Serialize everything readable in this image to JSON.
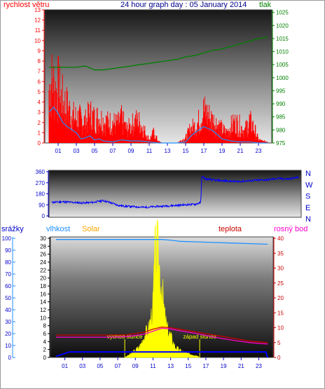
{
  "colors": {
    "wind": "#ff0000",
    "gust": "#1e90ff",
    "pressure": "#008000",
    "direction": "#0000ff",
    "humidity": "#1e90ff",
    "solar": "#ffff00",
    "temperature": "#cc0000",
    "dewpoint": "#ff00cc",
    "rain": "#0000ff",
    "title": "#00008b",
    "axis_blue": "#0000cd",
    "solar_label": "#ffa500"
  },
  "chart_data": [
    {
      "type": "line",
      "title": "24 hour graph day : 05 January 2014",
      "left_label": "rychlost větru",
      "right_label": "tlak",
      "x_ticks": [
        "01",
        "03",
        "05",
        "07",
        "09",
        "11",
        "13",
        "15",
        "17",
        "19",
        "21",
        "23"
      ],
      "y_left_ticks": [
        "0",
        "1",
        "2",
        "3",
        "4",
        "5",
        "6",
        "7",
        "8",
        "9",
        "10",
        "11",
        "12",
        "13"
      ],
      "y_left_range": [
        0,
        13
      ],
      "y_right_ticks": [
        "975",
        "980",
        "985",
        "990",
        "995",
        "1000",
        "1005",
        "1010",
        "1015",
        "1020",
        "1025"
      ],
      "y_right_range": [
        975,
        1026
      ],
      "x_range": [
        0,
        24
      ],
      "series": [
        {
          "key": "wind",
          "hours": [
            0,
            0.25,
            0.5,
            0.75,
            1,
            1.25,
            1.5,
            1.75,
            2,
            2.25,
            2.5,
            2.75,
            3,
            3.5,
            4,
            4.5,
            5,
            5.5,
            6,
            6.5,
            7,
            7.5,
            8,
            8.5,
            9,
            9.5,
            10,
            10.5,
            11,
            11.5,
            12,
            12.5,
            13,
            13.5,
            14,
            14.5,
            15,
            15.5,
            16,
            16.5,
            17,
            17.5,
            18,
            18.5,
            19,
            19.5,
            20,
            20.5,
            21,
            21.5,
            22,
            22.5,
            23,
            23.5,
            24
          ],
          "values": [
            6.5,
            7.2,
            6.8,
            6.0,
            6.6,
            5.5,
            5.0,
            4.6,
            4.2,
            3.8,
            3.4,
            3.0,
            3.0,
            2.8,
            2.5,
            3.4,
            2.8,
            3.0,
            2.6,
            2.4,
            2.4,
            2.2,
            2.8,
            1.6,
            2.0,
            2.6,
            2.4,
            1.4,
            0.4,
            1.2,
            0.2,
            0.0,
            0.0,
            0.0,
            0.0,
            0.3,
            0.6,
            1.6,
            2.0,
            2.6,
            3.8,
            3.2,
            2.6,
            2.2,
            1.6,
            1.2,
            2.0,
            2.4,
            2.0,
            1.4,
            2.6,
            1.8,
            0.4,
            0.2,
            0.2
          ]
        },
        {
          "key": "gust",
          "hours": [
            0,
            0.5,
            1,
            1.5,
            2,
            2.5,
            3,
            3.5,
            4,
            4.5,
            5,
            5.5,
            6,
            7,
            8,
            9,
            10,
            11,
            12,
            14,
            15,
            15.5,
            16,
            16.5,
            17,
            17.5,
            18,
            18.5,
            19,
            20,
            21,
            22,
            23,
            24
          ],
          "values": [
            3.0,
            3.5,
            2.9,
            2.0,
            1.6,
            1.3,
            1.0,
            0.4,
            0.5,
            0.7,
            0.3,
            0.4,
            0.2,
            0.1,
            0.3,
            0.2,
            0.2,
            0.1,
            0.0,
            0.0,
            0.1,
            0.6,
            1.0,
            1.3,
            1.6,
            1.4,
            1.2,
            0.8,
            0.4,
            0.2,
            0.1,
            0.1,
            0.0,
            0.0
          ]
        },
        {
          "key": "pressure",
          "hours": [
            0,
            1,
            2,
            3,
            4,
            5,
            6,
            7,
            8,
            9,
            10,
            11,
            12,
            13,
            14,
            15,
            16,
            17,
            18,
            19,
            20,
            21,
            22,
            23,
            24
          ],
          "values": [
            1004,
            1004,
            1004,
            1004,
            1004.5,
            1003,
            1003,
            1003.5,
            1004,
            1004.5,
            1005,
            1005.5,
            1006,
            1006.5,
            1007,
            1008,
            1008.5,
            1009.5,
            1010.5,
            1011,
            1012,
            1013,
            1014,
            1015,
            1015.5
          ]
        }
      ]
    },
    {
      "type": "scatter",
      "title": "",
      "y_ticks": [
        "360",
        "270",
        "180",
        "90",
        "0"
      ],
      "y_range": [
        0,
        360
      ],
      "right_labels": [
        "N",
        "W",
        "S",
        "E",
        "N"
      ],
      "x_range": [
        0,
        24
      ],
      "series": [
        {
          "key": "direction",
          "hours": [
            0,
            1,
            2,
            3,
            4,
            5,
            6,
            6.5,
            7,
            8,
            9,
            10,
            11,
            12,
            13,
            14,
            14.5,
            14.6,
            15,
            16,
            17,
            18,
            19,
            20,
            21,
            22,
            23,
            24
          ],
          "values": [
            110,
            115,
            110,
            105,
            110,
            125,
            100,
            85,
            80,
            75,
            70,
            75,
            80,
            85,
            90,
            95,
            110,
            325,
            300,
            290,
            285,
            280,
            285,
            290,
            295,
            305,
            300,
            315
          ]
        }
      ]
    },
    {
      "type": "line",
      "title": "",
      "legend": [
        "srážky",
        "vlhkost",
        "Solar",
        "teplota",
        "rosný bod"
      ],
      "x_ticks": [
        "01",
        "03",
        "05",
        "07",
        "09",
        "11",
        "13",
        "15",
        "17",
        "19",
        "21",
        "23"
      ],
      "x_range": [
        0,
        24
      ],
      "y_pct_ticks": [
        "0",
        "10",
        "20",
        "30",
        "40",
        "50",
        "60",
        "70",
        "80",
        "90",
        "100"
      ],
      "y_rain_ticks": [
        "0",
        "2",
        "4",
        "6",
        "8",
        "10",
        "12",
        "14",
        "16",
        "18",
        "20",
        "22",
        "24",
        "26",
        "28",
        "30"
      ],
      "y_rain_range": [
        0,
        30
      ],
      "y_temp_ticks": [
        "0",
        "5",
        "10",
        "15",
        "20",
        "25",
        "30",
        "35",
        "40"
      ],
      "y_temp_range": [
        0,
        40
      ],
      "annotations": {
        "sunrise": "východ slunce",
        "sunset": "západ slunce"
      },
      "sunrise_hour": 7.8,
      "sunset_hour": 16.3,
      "series": [
        {
          "key": "humidity",
          "hours": [
            0,
            2,
            4,
            6,
            8,
            10,
            12,
            13,
            14,
            16,
            18,
            20,
            22,
            24
          ],
          "values": [
            99,
            99,
            99,
            99,
            99,
            99,
            99,
            98.5,
            97.5,
            97,
            96.5,
            96,
            95.5,
            95
          ]
        },
        {
          "key": "temperature",
          "hours": [
            0,
            2,
            4,
            6,
            8,
            10,
            11,
            12,
            13,
            14,
            16,
            18,
            20,
            22,
            24
          ],
          "values": [
            7.5,
            7.5,
            7.5,
            7.5,
            7.6,
            8.5,
            9.5,
            10.2,
            10.0,
            9.5,
            8.5,
            7.5,
            6.5,
            5.5,
            5.0
          ]
        },
        {
          "key": "dewpoint",
          "hours": [
            0,
            2,
            4,
            6,
            8,
            10,
            11,
            12,
            13,
            14,
            16,
            18,
            20,
            22,
            24
          ],
          "values": [
            6.8,
            6.8,
            6.8,
            6.8,
            7.0,
            7.8,
            8.8,
            9.8,
            9.6,
            9.0,
            8.0,
            6.8,
            5.8,
            5.0,
            4.5
          ]
        },
        {
          "key": "rain",
          "hours": [
            0,
            0.3,
            0.5,
            1.0,
            1.5,
            2,
            4,
            6,
            8,
            10,
            12,
            14,
            16,
            18,
            20,
            22,
            23.8,
            24
          ],
          "values": [
            0.3,
            0.5,
            0.6,
            1.0,
            1.4,
            1.4,
            1.4,
            1.4,
            1.4,
            1.4,
            1.4,
            1.4,
            1.4,
            1.4,
            1.4,
            1.4,
            1.4,
            0.0
          ]
        },
        {
          "key": "solar",
          "hours": [
            7.8,
            8.5,
            9,
            9.5,
            10,
            10.5,
            11,
            11.2,
            11.5,
            11.8,
            12,
            12.3,
            12.6,
            13,
            13.5,
            14,
            15,
            16,
            16.3
          ],
          "values": [
            0,
            1,
            2,
            3,
            6,
            8,
            14,
            28,
            30,
            24,
            20,
            12,
            8,
            6,
            3,
            2,
            1,
            0.5,
            0
          ]
        }
      ]
    }
  ]
}
